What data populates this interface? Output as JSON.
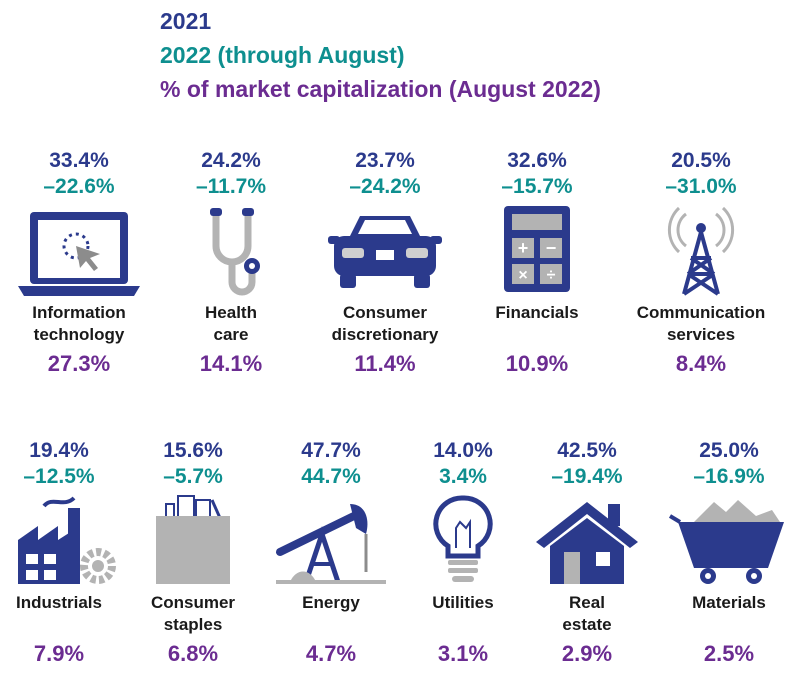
{
  "legend": {
    "series_2021": "2021",
    "series_2022": "2022 (through August)",
    "series_cap": "% of market capitalization (August 2022)"
  },
  "colors": {
    "navy": "#2b3a8c",
    "teal": "#0e8f8f",
    "purple": "#6b2c91",
    "gray": "#b3b3b3"
  },
  "chart_data": {
    "type": "table",
    "series": [
      {
        "name": "2021",
        "values": [
          "33.4%",
          "24.2%",
          "23.7%",
          "32.6%",
          "20.5%",
          "19.4%",
          "15.6%",
          "47.7%",
          "14.0%",
          "42.5%",
          "25.0%"
        ]
      },
      {
        "name": "2022 (through August)",
        "values": [
          "–22.6%",
          "–11.7%",
          "–24.2%",
          "–15.7%",
          "–31.0%",
          "–12.5%",
          "–5.7%",
          "44.7%",
          "3.4%",
          "–19.4%",
          "–16.9%"
        ]
      },
      {
        "name": "% of market capitalization (August 2022)",
        "values": [
          "27.3%",
          "14.1%",
          "11.4%",
          "10.9%",
          "8.4%",
          "7.9%",
          "6.8%",
          "4.7%",
          "3.1%",
          "2.9%",
          "2.5%"
        ]
      }
    ],
    "sectors": [
      {
        "line1": "Information",
        "line2": "technology",
        "icon": "laptop-cursor-icon",
        "r2021": "33.4%",
        "r2022": "–22.6%",
        "cap": "27.3%"
      },
      {
        "line1": "Health",
        "line2": "care",
        "icon": "stethoscope-icon",
        "r2021": "24.2%",
        "r2022": "–11.7%",
        "cap": "14.1%"
      },
      {
        "line1": "Consumer",
        "line2": "discretionary",
        "icon": "car-icon",
        "r2021": "23.7%",
        "r2022": "–24.2%",
        "cap": "11.4%"
      },
      {
        "line1": "Financials",
        "line2": "",
        "icon": "calculator-icon",
        "r2021": "32.6%",
        "r2022": "–15.7%",
        "cap": "10.9%"
      },
      {
        "line1": "Communication",
        "line2": "services",
        "icon": "radio-tower-icon",
        "r2021": "20.5%",
        "r2022": "–31.0%",
        "cap": "8.4%"
      },
      {
        "line1": "Industrials",
        "line2": "",
        "icon": "factory-icon",
        "r2021": "19.4%",
        "r2022": "–12.5%",
        "cap": "7.9%"
      },
      {
        "line1": "Consumer",
        "line2": "staples",
        "icon": "grocery-bag-icon",
        "r2021": "15.6%",
        "r2022": "–5.7%",
        "cap": "6.8%"
      },
      {
        "line1": "Energy",
        "line2": "",
        "icon": "oil-pump-icon",
        "r2021": "47.7%",
        "r2022": "44.7%",
        "cap": "4.7%"
      },
      {
        "line1": "Utilities",
        "line2": "",
        "icon": "light-bulb-icon",
        "r2021": "14.0%",
        "r2022": "3.4%",
        "cap": "3.1%"
      },
      {
        "line1": "Real",
        "line2": "estate",
        "icon": "house-icon",
        "r2021": "42.5%",
        "r2022": "–19.4%",
        "cap": "2.9%"
      },
      {
        "line1": "Materials",
        "line2": "",
        "icon": "mine-cart-icon",
        "r2021": "25.0%",
        "r2022": "–16.9%",
        "cap": "2.5%"
      }
    ]
  }
}
